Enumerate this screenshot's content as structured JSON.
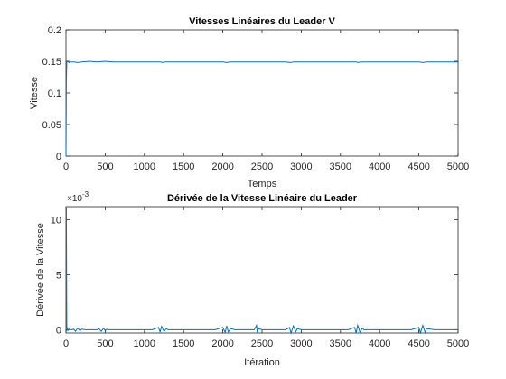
{
  "chart_data": [
    {
      "type": "line",
      "title": "Vitesses Linéaires du Leader V",
      "xlabel": "Temps",
      "ylabel": "Vitesse",
      "xlim": [
        0,
        5000
      ],
      "ylim": [
        0,
        0.2
      ],
      "xticks": [
        "0",
        "500",
        "1000",
        "1500",
        "2000",
        "2500",
        "3000",
        "3500",
        "4000",
        "4500",
        "5000"
      ],
      "yticks": [
        "0",
        "0.05",
        "0.1",
        "0.15",
        "0.2"
      ],
      "grid": false,
      "line_color": "#0072BD",
      "series": [
        {
          "x": [
            0,
            5,
            10,
            20,
            40,
            60,
            100,
            150,
            200,
            300,
            400,
            500,
            600,
            700,
            800,
            900,
            1000,
            1100,
            1200,
            1230,
            1260,
            1300,
            1400,
            1500,
            1600,
            1700,
            1800,
            1900,
            2000,
            2050,
            2100,
            2200,
            2300,
            2400,
            2500,
            2600,
            2700,
            2800,
            2870,
            2900,
            2950,
            3000,
            3100,
            3200,
            3300,
            3400,
            3500,
            3600,
            3700,
            3720,
            3760,
            3800,
            3900,
            4000,
            4100,
            4200,
            4300,
            4400,
            4500,
            4550,
            4600,
            4700,
            4800,
            4900,
            5000
          ],
          "y": [
            0,
            0.12,
            0.148,
            0.15,
            0.148,
            0.149,
            0.149,
            0.148,
            0.149,
            0.15,
            0.149,
            0.15,
            0.149,
            0.149,
            0.149,
            0.149,
            0.149,
            0.149,
            0.149,
            0.148,
            0.149,
            0.149,
            0.149,
            0.149,
            0.149,
            0.149,
            0.149,
            0.149,
            0.149,
            0.148,
            0.149,
            0.149,
            0.149,
            0.149,
            0.149,
            0.149,
            0.149,
            0.149,
            0.148,
            0.149,
            0.149,
            0.149,
            0.149,
            0.149,
            0.149,
            0.149,
            0.149,
            0.149,
            0.149,
            0.148,
            0.149,
            0.149,
            0.149,
            0.149,
            0.149,
            0.149,
            0.149,
            0.149,
            0.149,
            0.148,
            0.149,
            0.149,
            0.149,
            0.149,
            0.149
          ]
        }
      ]
    },
    {
      "type": "line",
      "title": "Dérivée de la Vitesse Linéaire du Leader",
      "xlabel": "Itération",
      "ylabel": "Dérivée de la Vitesse",
      "exponent_label": "×10",
      "exponent_power": "-3",
      "xlim": [
        0,
        5000
      ],
      "ylim": [
        -0.3,
        11.2
      ],
      "y_scale_factor": "1e-3",
      "xticks": [
        "0",
        "500",
        "1000",
        "1500",
        "2000",
        "2500",
        "3000",
        "3500",
        "4000",
        "4500",
        "5000"
      ],
      "yticks": [
        "0",
        "5",
        "10"
      ],
      "grid": false,
      "line_color": "#0072BD",
      "series": [
        {
          "x": [
            0,
            5,
            10,
            15,
            20,
            30,
            40,
            60,
            80,
            100,
            120,
            150,
            180,
            200,
            250,
            300,
            400,
            420,
            450,
            480,
            500,
            520,
            550,
            600,
            700,
            800,
            900,
            1000,
            1100,
            1180,
            1200,
            1220,
            1250,
            1280,
            1300,
            1400,
            1500,
            1600,
            1700,
            1800,
            1900,
            2000,
            2030,
            2050,
            2070,
            2100,
            2150,
            2200,
            2300,
            2400,
            2430,
            2440,
            2450,
            2500,
            2600,
            2700,
            2800,
            2850,
            2870,
            2900,
            2930,
            2950,
            3000,
            3100,
            3200,
            3300,
            3400,
            3500,
            3600,
            3680,
            3700,
            3720,
            3750,
            3780,
            3800,
            3900,
            4000,
            4100,
            4200,
            4300,
            4400,
            4500,
            4520,
            4550,
            4580,
            4600,
            4700,
            4800,
            4900,
            5000
          ],
          "y": [
            11,
            11,
            0.3,
            -0.1,
            0.1,
            -0.05,
            0.05,
            0,
            0,
            0.05,
            -0.15,
            0.15,
            -0.1,
            0.05,
            0,
            0,
            0,
            0.1,
            -0.15,
            0.15,
            -0.1,
            0.05,
            0,
            0,
            0,
            0,
            0,
            0,
            0,
            0.2,
            -0.2,
            0.3,
            -0.15,
            0.1,
            0,
            0,
            0,
            0,
            0,
            0,
            0,
            0.2,
            -0.25,
            0.35,
            -0.2,
            0.1,
            0,
            0,
            0,
            0,
            0.4,
            -0.3,
            0.1,
            0,
            0,
            0,
            0,
            0.2,
            -0.3,
            0.35,
            -0.2,
            0.1,
            0,
            0,
            0,
            0,
            0,
            0,
            0,
            0.2,
            -0.3,
            0.4,
            -0.25,
            0.15,
            0,
            0,
            0,
            0,
            0,
            0,
            0,
            0.2,
            -0.3,
            0.4,
            -0.25,
            0.1,
            0,
            0,
            0,
            0
          ]
        }
      ]
    }
  ]
}
